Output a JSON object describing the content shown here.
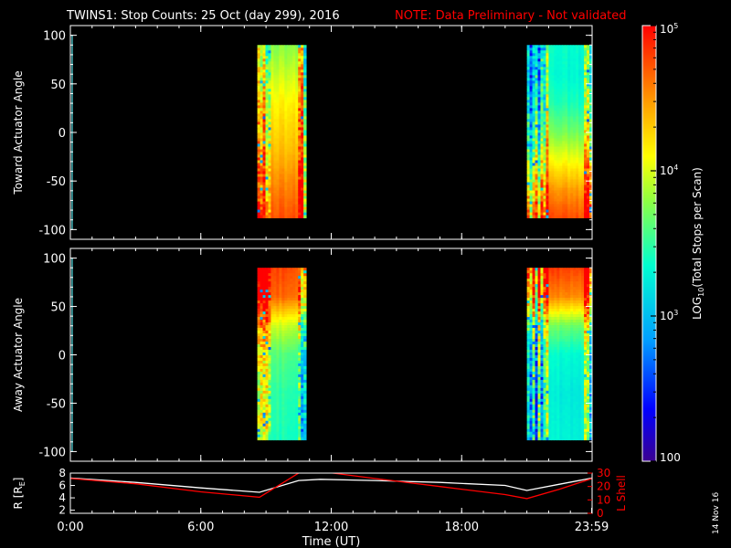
{
  "title": "TWINS1: Stop Counts: 25 Oct (day 299), 2016",
  "note": "NOTE: Data Preliminary - Not validated",
  "side_date": "14 Nov 16",
  "colorbar": {
    "label_prefix": "LOG",
    "label_sub": "10",
    "label_suffix": "(Total Stops per Scan)",
    "ticks": [
      {
        "value": 100,
        "label": "100"
      },
      {
        "value": 1000,
        "label": "10",
        "exp": "3"
      },
      {
        "value": 10000,
        "label": "10",
        "exp": "4"
      },
      {
        "value": 100000,
        "label": "10",
        "exp": "5"
      }
    ],
    "min": 100,
    "max": 100000
  },
  "chart_data": [
    {
      "type": "heatmap",
      "name": "toward",
      "ylabel": "Toward Actuator Angle",
      "xlim": [
        0,
        24
      ],
      "ylim": [
        -110,
        110
      ],
      "yticks": [
        -100,
        -50,
        0,
        50,
        100
      ],
      "scale": "log",
      "segments": [
        {
          "x": [
            8.6,
            10.85
          ],
          "y": [
            -88,
            90
          ],
          "profile": [
            [
              90,
              6000
            ],
            [
              60,
              9000
            ],
            [
              30,
              14000
            ],
            [
              10,
              17000
            ],
            [
              -20,
              23000
            ],
            [
              -50,
              35000
            ],
            [
              -88,
              55000
            ]
          ],
          "noisy_edge_x": [
            8.6,
            9.2
          ]
        },
        {
          "x": [
            21.0,
            24.1
          ],
          "y": [
            -88,
            90
          ],
          "profile": [
            [
              90,
              2200
            ],
            [
              60,
              2000
            ],
            [
              30,
              2600
            ],
            [
              0,
              5000
            ],
            [
              -30,
              12000
            ],
            [
              -60,
              30000
            ],
            [
              -88,
              55000
            ]
          ],
          "noisy_edge_x": [
            21.0,
            21.9
          ]
        }
      ]
    },
    {
      "type": "heatmap",
      "name": "away",
      "ylabel": "Away Actuator Angle",
      "xlim": [
        0,
        24
      ],
      "ylim": [
        -110,
        110
      ],
      "yticks": [
        -100,
        -50,
        0,
        50,
        100
      ],
      "scale": "log",
      "segments": [
        {
          "x": [
            8.6,
            10.85
          ],
          "y": [
            -88,
            90
          ],
          "profile": [
            [
              90,
              60000
            ],
            [
              60,
              45000
            ],
            [
              30,
              9000
            ],
            [
              0,
              4000
            ],
            [
              -40,
              3000
            ],
            [
              -88,
              2600
            ]
          ],
          "noisy_edge_x": [
            8.6,
            9.2
          ]
        },
        {
          "x": [
            21.0,
            24.1
          ],
          "y": [
            -88,
            90
          ],
          "profile": [
            [
              90,
              65000
            ],
            [
              60,
              35000
            ],
            [
              30,
              5000
            ],
            [
              0,
              2200
            ],
            [
              -40,
              1800
            ],
            [
              -88,
              2000
            ]
          ],
          "noisy_edge_x": [
            21.0,
            21.9
          ]
        }
      ]
    },
    {
      "type": "line",
      "name": "orbit",
      "ylabel_left": "R [R",
      "ylabel_left_sub": "E",
      "ylabel_left_end": "]",
      "ylabel_right": "L Shell",
      "xlabel": "Time (UT)",
      "xlim": [
        0,
        24
      ],
      "xticks": [
        {
          "value": 0,
          "label": "0:00"
        },
        {
          "value": 6,
          "label": "6:00"
        },
        {
          "value": 12,
          "label": "12:00"
        },
        {
          "value": 18,
          "label": "18:00"
        },
        {
          "value": 23.98,
          "label": "23:59"
        }
      ],
      "ylim_left": [
        1.5,
        8
      ],
      "yticks_left": [
        2,
        4,
        6,
        8
      ],
      "ylim_right": [
        0,
        30
      ],
      "yticks_right": [
        0,
        10,
        20,
        30
      ],
      "series": [
        {
          "axis": "left",
          "color": "#ffffff",
          "x": [
            0,
            3,
            6,
            8.7,
            10.5,
            11.5,
            14,
            17,
            20,
            21,
            22.5,
            24
          ],
          "y": [
            7.2,
            6.5,
            5.6,
            4.9,
            6.8,
            7.0,
            6.8,
            6.5,
            6.0,
            5.2,
            6.2,
            7.2
          ]
        },
        {
          "axis": "right",
          "color": "#ff0000",
          "x": [
            0,
            3,
            6,
            8.7,
            10.6,
            11.6,
            14,
            17,
            20,
            21,
            22.5,
            24
          ],
          "y": [
            26,
            22,
            16,
            12,
            31,
            31,
            26,
            20,
            14,
            11,
            18,
            26
          ]
        }
      ]
    }
  ]
}
